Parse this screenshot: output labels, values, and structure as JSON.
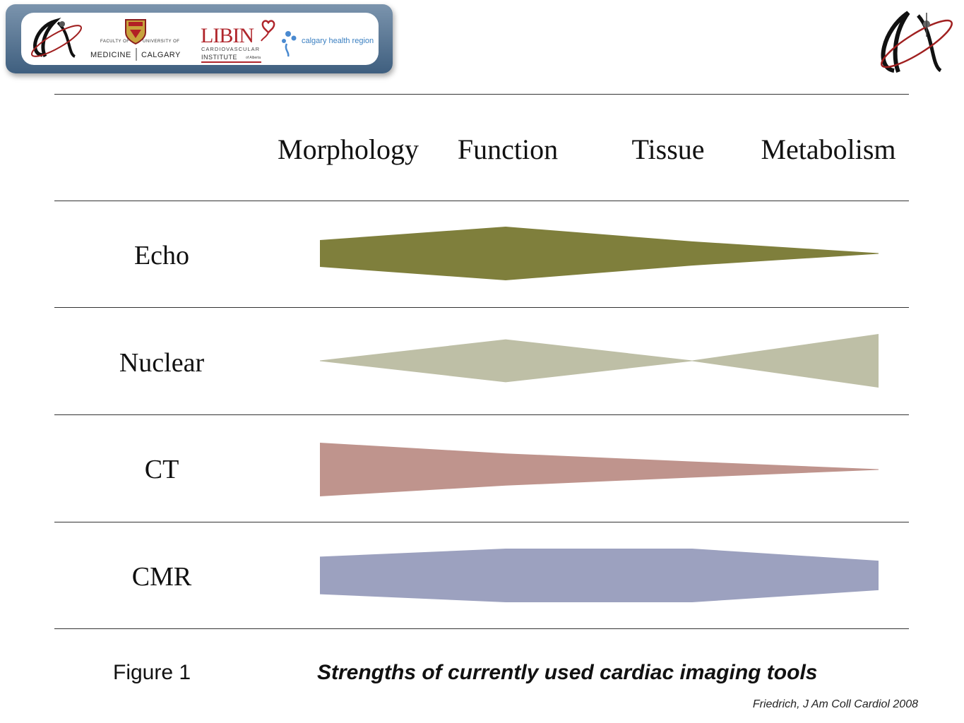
{
  "header": {
    "logos": {
      "faculty_small": "FACULTY OF",
      "university_small": "UNIVERSITY OF",
      "medicine": "MEDICINE",
      "calgary": "CALGARY",
      "libin": "LIBIN",
      "cardiovascular": "CARDIOVASCULAR",
      "institute": "INSTITUTE",
      "of_alberta": "of Alberta",
      "calgary_health_region": "calgary health region"
    },
    "icon_names": [
      "lx-logo-icon",
      "university-crest-icon",
      "heart-ribbon-icon",
      "calgary-health-region-icon"
    ]
  },
  "chart_data": {
    "type": "table",
    "columns": [
      "Morphology",
      "Function",
      "Tissue",
      "Metabolism"
    ],
    "rows": [
      {
        "label": "Echo",
        "color": "#7f7f3c",
        "thickness": [
          0.5,
          1.0,
          0.45,
          0.0
        ]
      },
      {
        "label": "Nuclear",
        "color": "#bebfa6",
        "thickness": [
          0.0,
          0.8,
          0.0,
          1.0
        ]
      },
      {
        "label": "CT",
        "color": "#bf948d",
        "thickness": [
          1.0,
          0.6,
          0.3,
          0.0
        ]
      },
      {
        "label": "CMR",
        "color": "#9ca1bf",
        "thickness": [
          0.7,
          1.0,
          1.0,
          0.55
        ]
      }
    ]
  },
  "footer": {
    "figure_label": "Figure 1",
    "caption": "Strengths of currently used cardiac imaging tools",
    "citation": "Friedrich, J Am Coll Cardiol 2008"
  }
}
